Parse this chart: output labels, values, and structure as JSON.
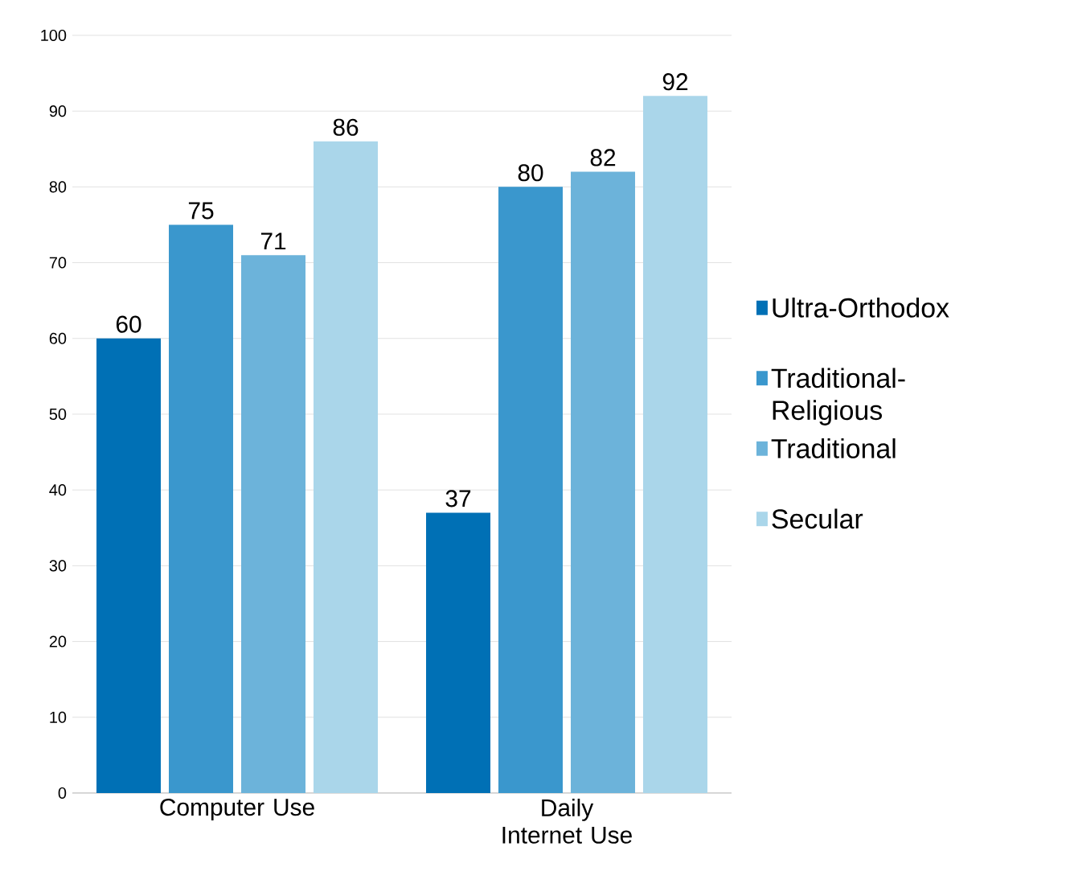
{
  "chart_data": {
    "type": "bar",
    "categories": [
      "Computer Use",
      "Daily Internet Use"
    ],
    "series": [
      {
        "name": "Ultra-Orthodox",
        "color": "#0070b5",
        "values": [
          60,
          37
        ]
      },
      {
        "name": "Traditional-Religious",
        "color": "#3a97cd",
        "values": [
          75,
          80
        ]
      },
      {
        "name": "Traditional",
        "color": "#6cb3da",
        "values": [
          71,
          82
        ]
      },
      {
        "name": "Secular",
        "color": "#aad6ea",
        "values": [
          86,
          92
        ]
      }
    ],
    "ylim": [
      0,
      100
    ],
    "yticks": [
      0,
      10,
      20,
      30,
      40,
      50,
      60,
      70,
      80,
      90,
      100
    ],
    "grid": "y",
    "legend": "right",
    "data_labels": true
  }
}
